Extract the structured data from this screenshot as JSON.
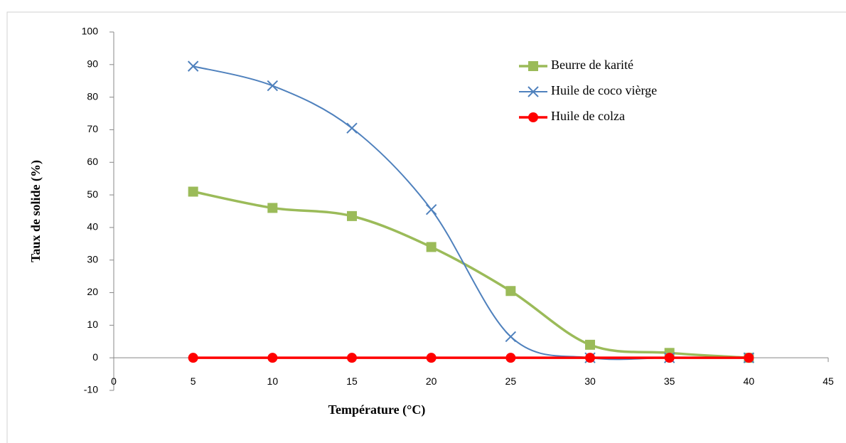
{
  "chart_data": {
    "type": "line",
    "smooth": true,
    "x_label": "Température  (°C)",
    "y_label": "Taux de solide (%)",
    "x": [
      5,
      10,
      15,
      20,
      25,
      30,
      35,
      40
    ],
    "series": [
      {
        "name": "Beurre de karité",
        "color": "#9bbb59",
        "marker": "square",
        "values": [
          51,
          46,
          43.5,
          34,
          20.5,
          4,
          1.5,
          0
        ]
      },
      {
        "name": "Huile de coco vièrge",
        "color": "#4f81bd",
        "marker": "x",
        "values": [
          89.5,
          83.5,
          70.5,
          45.5,
          6.5,
          0,
          0,
          0
        ]
      },
      {
        "name": "Huile de colza",
        "color": "#ff0000",
        "marker": "circle",
        "values": [
          0,
          0,
          0,
          0,
          0,
          0,
          0,
          0
        ]
      }
    ],
    "xlim": [
      0,
      45
    ],
    "xticks": [
      0,
      5,
      10,
      15,
      20,
      25,
      30,
      35,
      40,
      45
    ],
    "ylim": [
      -10,
      100
    ],
    "yticks": [
      -10,
      0,
      10,
      20,
      30,
      40,
      50,
      60,
      70,
      80,
      90,
      100
    ],
    "grid": false,
    "legend": "upper right"
  }
}
